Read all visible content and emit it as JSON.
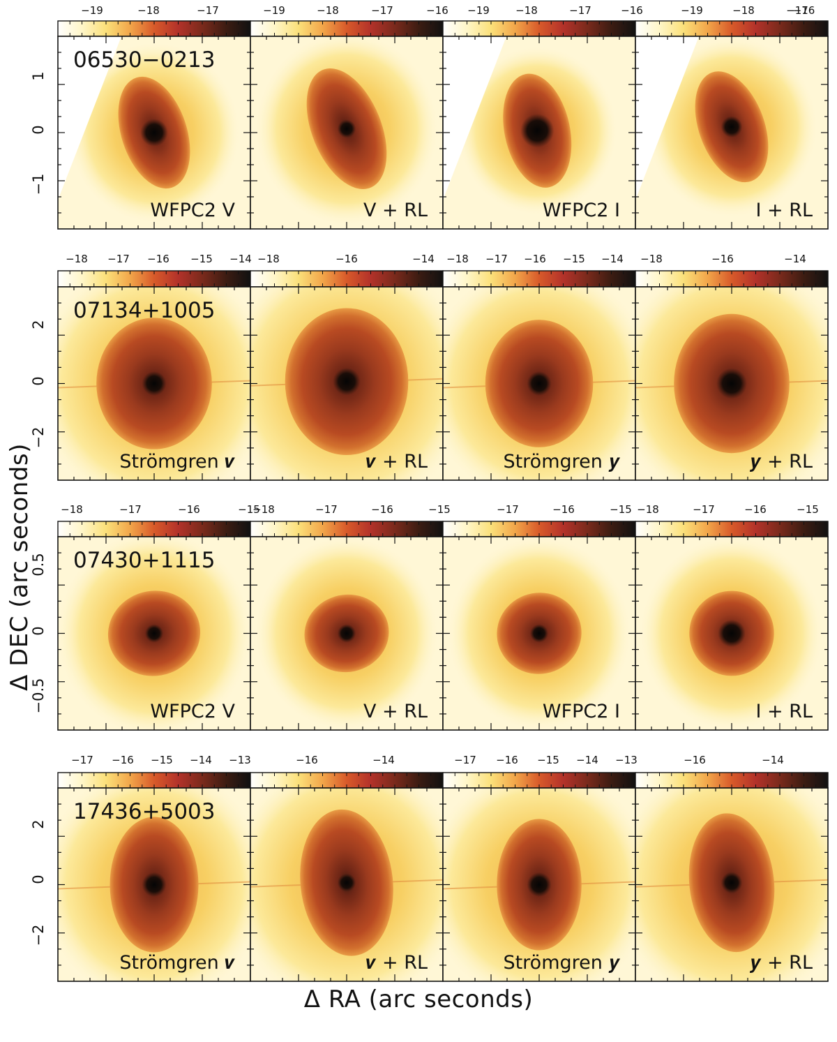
{
  "axes": {
    "ylabel": "Δ DEC (arc seconds)",
    "xlabel": "Δ RA (arc seconds)"
  },
  "rows": [
    {
      "object": "06530−0213",
      "dec_ticks": [
        "1",
        "0",
        "−1"
      ],
      "panels": [
        {
          "label": "WFPC2 V",
          "colorbar_ticks": [
            "−19",
            "−18",
            "−17"
          ]
        },
        {
          "label": "V + RL",
          "colorbar_ticks": [
            "−19",
            "−18",
            "−17",
            "−16"
          ]
        },
        {
          "label": "WFPC2 I",
          "colorbar_ticks": [
            "−19",
            "−18",
            "−17",
            "−16"
          ]
        },
        {
          "label": "I + RL",
          "colorbar_ticks": [
            "−19",
            "−18",
            "−17",
            "−16"
          ]
        }
      ]
    },
    {
      "object": "07134+1005",
      "dec_ticks": [
        "2",
        "0",
        "−2"
      ],
      "panels": [
        {
          "label": "Strömgren 𝒗",
          "colorbar_ticks": [
            "−18",
            "−17",
            "−16",
            "−15",
            "−14"
          ]
        },
        {
          "label": "𝒗 + RL",
          "colorbar_ticks": [
            "−18",
            "−16",
            "−14"
          ]
        },
        {
          "label": "Strömgren 𝒚",
          "colorbar_ticks": [
            "−18",
            "−17",
            "−16",
            "−15",
            "−14"
          ]
        },
        {
          "label": "𝒚 + RL",
          "colorbar_ticks": [
            "−18",
            "−16",
            "−14"
          ]
        }
      ]
    },
    {
      "object": "07430+1115",
      "dec_ticks": [
        "0.5",
        "0",
        "−0.5"
      ],
      "panels": [
        {
          "label": "WFPC2 V",
          "colorbar_ticks": [
            "−18",
            "−17",
            "−16",
            "−15"
          ]
        },
        {
          "label": "V + RL",
          "colorbar_ticks": [
            "−18",
            "−17",
            "−16",
            "−15"
          ]
        },
        {
          "label": "WFPC2 I",
          "colorbar_ticks": [
            "−17",
            "−16",
            "−15"
          ]
        },
        {
          "label": "I + RL",
          "colorbar_ticks": [
            "−18",
            "−17",
            "−16",
            "−15"
          ]
        }
      ]
    },
    {
      "object": "17436+5003",
      "dec_ticks": [
        "2",
        "0",
        "−2"
      ],
      "panels": [
        {
          "label": "Strömgren 𝒗",
          "colorbar_ticks": [
            "−17",
            "−16",
            "−15",
            "−14",
            "−13"
          ]
        },
        {
          "label": "𝒗 + RL",
          "colorbar_ticks": [
            "−16",
            "−14"
          ]
        },
        {
          "label": "Strömgren 𝒚",
          "colorbar_ticks": [
            "−17",
            "−16",
            "−15",
            "−14",
            "−13"
          ]
        },
        {
          "label": "𝒚 + RL",
          "colorbar_ticks": [
            "−16",
            "−14"
          ]
        }
      ]
    }
  ],
  "colormap": [
    "#ffffff",
    "#fff6c8",
    "#fbe07a",
    "#f2a64a",
    "#d85a2a",
    "#b3322a",
    "#7a2a1c",
    "#3c1c12",
    "#111111"
  ]
}
